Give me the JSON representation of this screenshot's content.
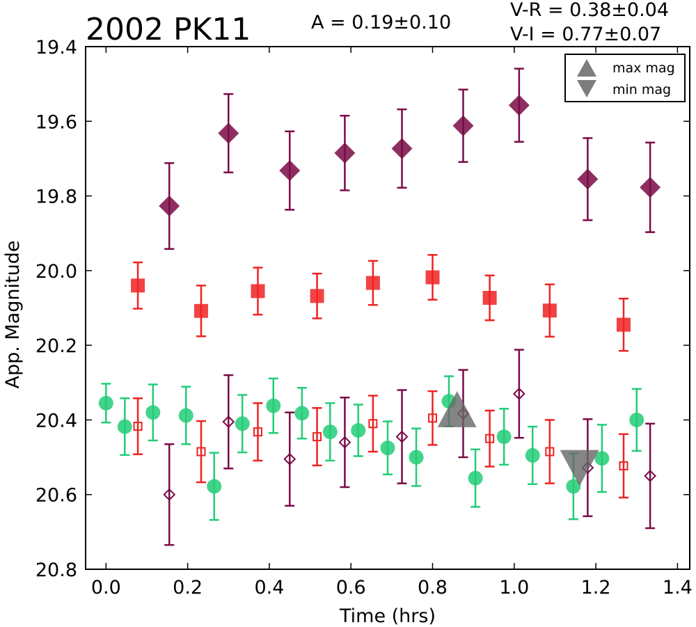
{
  "chart_data": {
    "type": "scatter",
    "title": "2002 PK11",
    "amplitude_label": "A  = 0.19±0.10",
    "color_labels": [
      "V-R = 0.38±0.04",
      "V-I  = 0.77±0.07"
    ],
    "xlabel": "Time (hrs)",
    "ylabel": "App. Magnitude",
    "xlim": [
      -0.05,
      1.43
    ],
    "ylim": [
      20.8,
      19.4
    ],
    "y_inverted": true,
    "xticks": [
      "0.0",
      "0.2",
      "0.4",
      "0.6",
      "0.8",
      "1.0",
      "1.2",
      "1.4"
    ],
    "yticks": [
      "19.4",
      "19.6",
      "19.8",
      "20.0",
      "20.2",
      "20.4",
      "20.6",
      "20.8"
    ],
    "legend_position": "top-right",
    "legend": [
      {
        "label": "max mag",
        "marker": "triangle-up"
      },
      {
        "label": "min mag",
        "marker": "triangle-down"
      }
    ],
    "colors": {
      "V": "#22cc77",
      "R": "#ee2222",
      "I": "#7a0a45",
      "extremes": "#666666"
    },
    "series": [
      {
        "marker": "circle",
        "filled": true,
        "color_key": "V",
        "points": [
          {
            "x": 0.0,
            "y": 20.355,
            "err": 0.052
          },
          {
            "x": 0.046,
            "y": 20.418,
            "err": 0.076
          },
          {
            "x": 0.115,
            "y": 20.38,
            "err": 0.075
          },
          {
            "x": 0.196,
            "y": 20.388,
            "err": 0.077
          },
          {
            "x": 0.265,
            "y": 20.578,
            "err": 0.09
          },
          {
            "x": 0.334,
            "y": 20.41,
            "err": 0.077
          },
          {
            "x": 0.41,
            "y": 20.362,
            "err": 0.073
          },
          {
            "x": 0.48,
            "y": 20.382,
            "err": 0.068
          },
          {
            "x": 0.549,
            "y": 20.432,
            "err": 0.077
          },
          {
            "x": 0.618,
            "y": 20.428,
            "err": 0.069
          },
          {
            "x": 0.69,
            "y": 20.475,
            "err": 0.071
          },
          {
            "x": 0.76,
            "y": 20.5,
            "err": 0.077
          },
          {
            "x": 0.84,
            "y": 20.35,
            "err": 0.067
          },
          {
            "x": 0.905,
            "y": 20.556,
            "err": 0.077
          },
          {
            "x": 0.975,
            "y": 20.445,
            "err": 0.075
          },
          {
            "x": 1.045,
            "y": 20.495,
            "err": 0.077
          },
          {
            "x": 1.145,
            "y": 20.578,
            "err": 0.088
          },
          {
            "x": 1.215,
            "y": 20.503,
            "err": 0.09
          },
          {
            "x": 1.3,
            "y": 20.4,
            "err": 0.083
          }
        ]
      },
      {
        "marker": "square",
        "filled": true,
        "color_key": "R",
        "points": [
          {
            "x": 0.078,
            "y": 20.04,
            "err": 0.062
          },
          {
            "x": 0.233,
            "y": 20.108,
            "err": 0.068
          },
          {
            "x": 0.372,
            "y": 20.055,
            "err": 0.063
          },
          {
            "x": 0.517,
            "y": 20.068,
            "err": 0.06
          },
          {
            "x": 0.654,
            "y": 20.033,
            "err": 0.059
          },
          {
            "x": 0.8,
            "y": 20.018,
            "err": 0.06
          },
          {
            "x": 0.94,
            "y": 20.073,
            "err": 0.06
          },
          {
            "x": 1.087,
            "y": 20.107,
            "err": 0.07
          },
          {
            "x": 1.268,
            "y": 20.145,
            "err": 0.07
          }
        ]
      },
      {
        "marker": "diamond",
        "filled": true,
        "color_key": "I",
        "points": [
          {
            "x": 0.155,
            "y": 19.827,
            "err": 0.115
          },
          {
            "x": 0.3,
            "y": 19.632,
            "err": 0.105
          },
          {
            "x": 0.45,
            "y": 19.732,
            "err": 0.105
          },
          {
            "x": 0.585,
            "y": 19.685,
            "err": 0.1
          },
          {
            "x": 0.725,
            "y": 19.673,
            "err": 0.105
          },
          {
            "x": 0.875,
            "y": 19.612,
            "err": 0.097
          },
          {
            "x": 1.012,
            "y": 19.557,
            "err": 0.098
          },
          {
            "x": 1.18,
            "y": 19.755,
            "err": 0.11
          },
          {
            "x": 1.333,
            "y": 19.777,
            "err": 0.12
          }
        ]
      },
      {
        "marker": "square",
        "filled": false,
        "color_key": "R",
        "points": [
          {
            "x": 0.078,
            "y": 20.417,
            "err": 0.075
          },
          {
            "x": 0.233,
            "y": 20.485,
            "err": 0.082
          },
          {
            "x": 0.372,
            "y": 20.432,
            "err": 0.077
          },
          {
            "x": 0.517,
            "y": 20.445,
            "err": 0.077
          },
          {
            "x": 0.654,
            "y": 20.41,
            "err": 0.075
          },
          {
            "x": 0.8,
            "y": 20.395,
            "err": 0.072
          },
          {
            "x": 0.94,
            "y": 20.45,
            "err": 0.075
          },
          {
            "x": 1.087,
            "y": 20.485,
            "err": 0.085
          },
          {
            "x": 1.268,
            "y": 20.523,
            "err": 0.085
          }
        ]
      },
      {
        "marker": "diamond",
        "filled": false,
        "color_key": "I",
        "points": [
          {
            "x": 0.155,
            "y": 20.6,
            "err": 0.135
          },
          {
            "x": 0.3,
            "y": 20.405,
            "err": 0.125
          },
          {
            "x": 0.45,
            "y": 20.505,
            "err": 0.125
          },
          {
            "x": 0.585,
            "y": 20.46,
            "err": 0.12
          },
          {
            "x": 0.725,
            "y": 20.445,
            "err": 0.125
          },
          {
            "x": 0.875,
            "y": 20.383,
            "err": 0.117
          },
          {
            "x": 1.012,
            "y": 20.33,
            "err": 0.118
          },
          {
            "x": 1.18,
            "y": 20.528,
            "err": 0.13
          },
          {
            "x": 1.333,
            "y": 20.55,
            "err": 0.14
          }
        ]
      }
    ],
    "extremes": [
      {
        "kind": "max",
        "marker": "triangle-up",
        "x": 0.86,
        "y": 20.375
      },
      {
        "kind": "min",
        "marker": "triangle-down",
        "x": 1.16,
        "y": 20.525
      }
    ]
  }
}
